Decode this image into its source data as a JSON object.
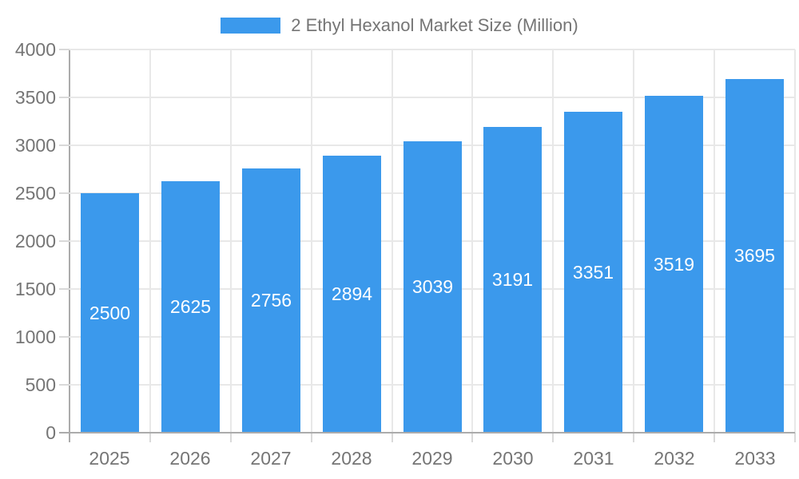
{
  "chart_data": {
    "type": "bar",
    "title": "2 Ethyl Hexanol Market Size (Million)",
    "categories": [
      "2025",
      "2026",
      "2027",
      "2028",
      "2029",
      "2030",
      "2031",
      "2032",
      "2033"
    ],
    "series": [
      {
        "name": "2 Ethyl Hexanol Market Size (Million)",
        "values": [
          2500,
          2625,
          2756,
          2894,
          3039,
          3191,
          3351,
          3519,
          3695
        ]
      }
    ],
    "bar_value_labels": [
      "2500",
      "2625",
      "2756",
      "2894",
      "3039",
      "3191",
      "3351",
      "3519",
      "3695"
    ],
    "xlabel": "",
    "ylabel": "",
    "ylim": [
      0,
      4000
    ],
    "yticks": [
      0,
      500,
      1000,
      1500,
      2000,
      2500,
      3000,
      3500,
      4000
    ],
    "grid": "horizontal-and-vertical",
    "legend_position": "top",
    "value_labels_inside_bars": true
  },
  "legend": {
    "label": "2 Ethyl Hexanol Market Size (Million)"
  },
  "colors": {
    "bar": "#3B99EC",
    "bar_label_text": "#FFFFFF",
    "axis_text": "#757575",
    "gridline": "#E8E8E8",
    "baseline": "#ABABAB",
    "tick": "#D9D9D9",
    "background": "#FFFFFF"
  }
}
